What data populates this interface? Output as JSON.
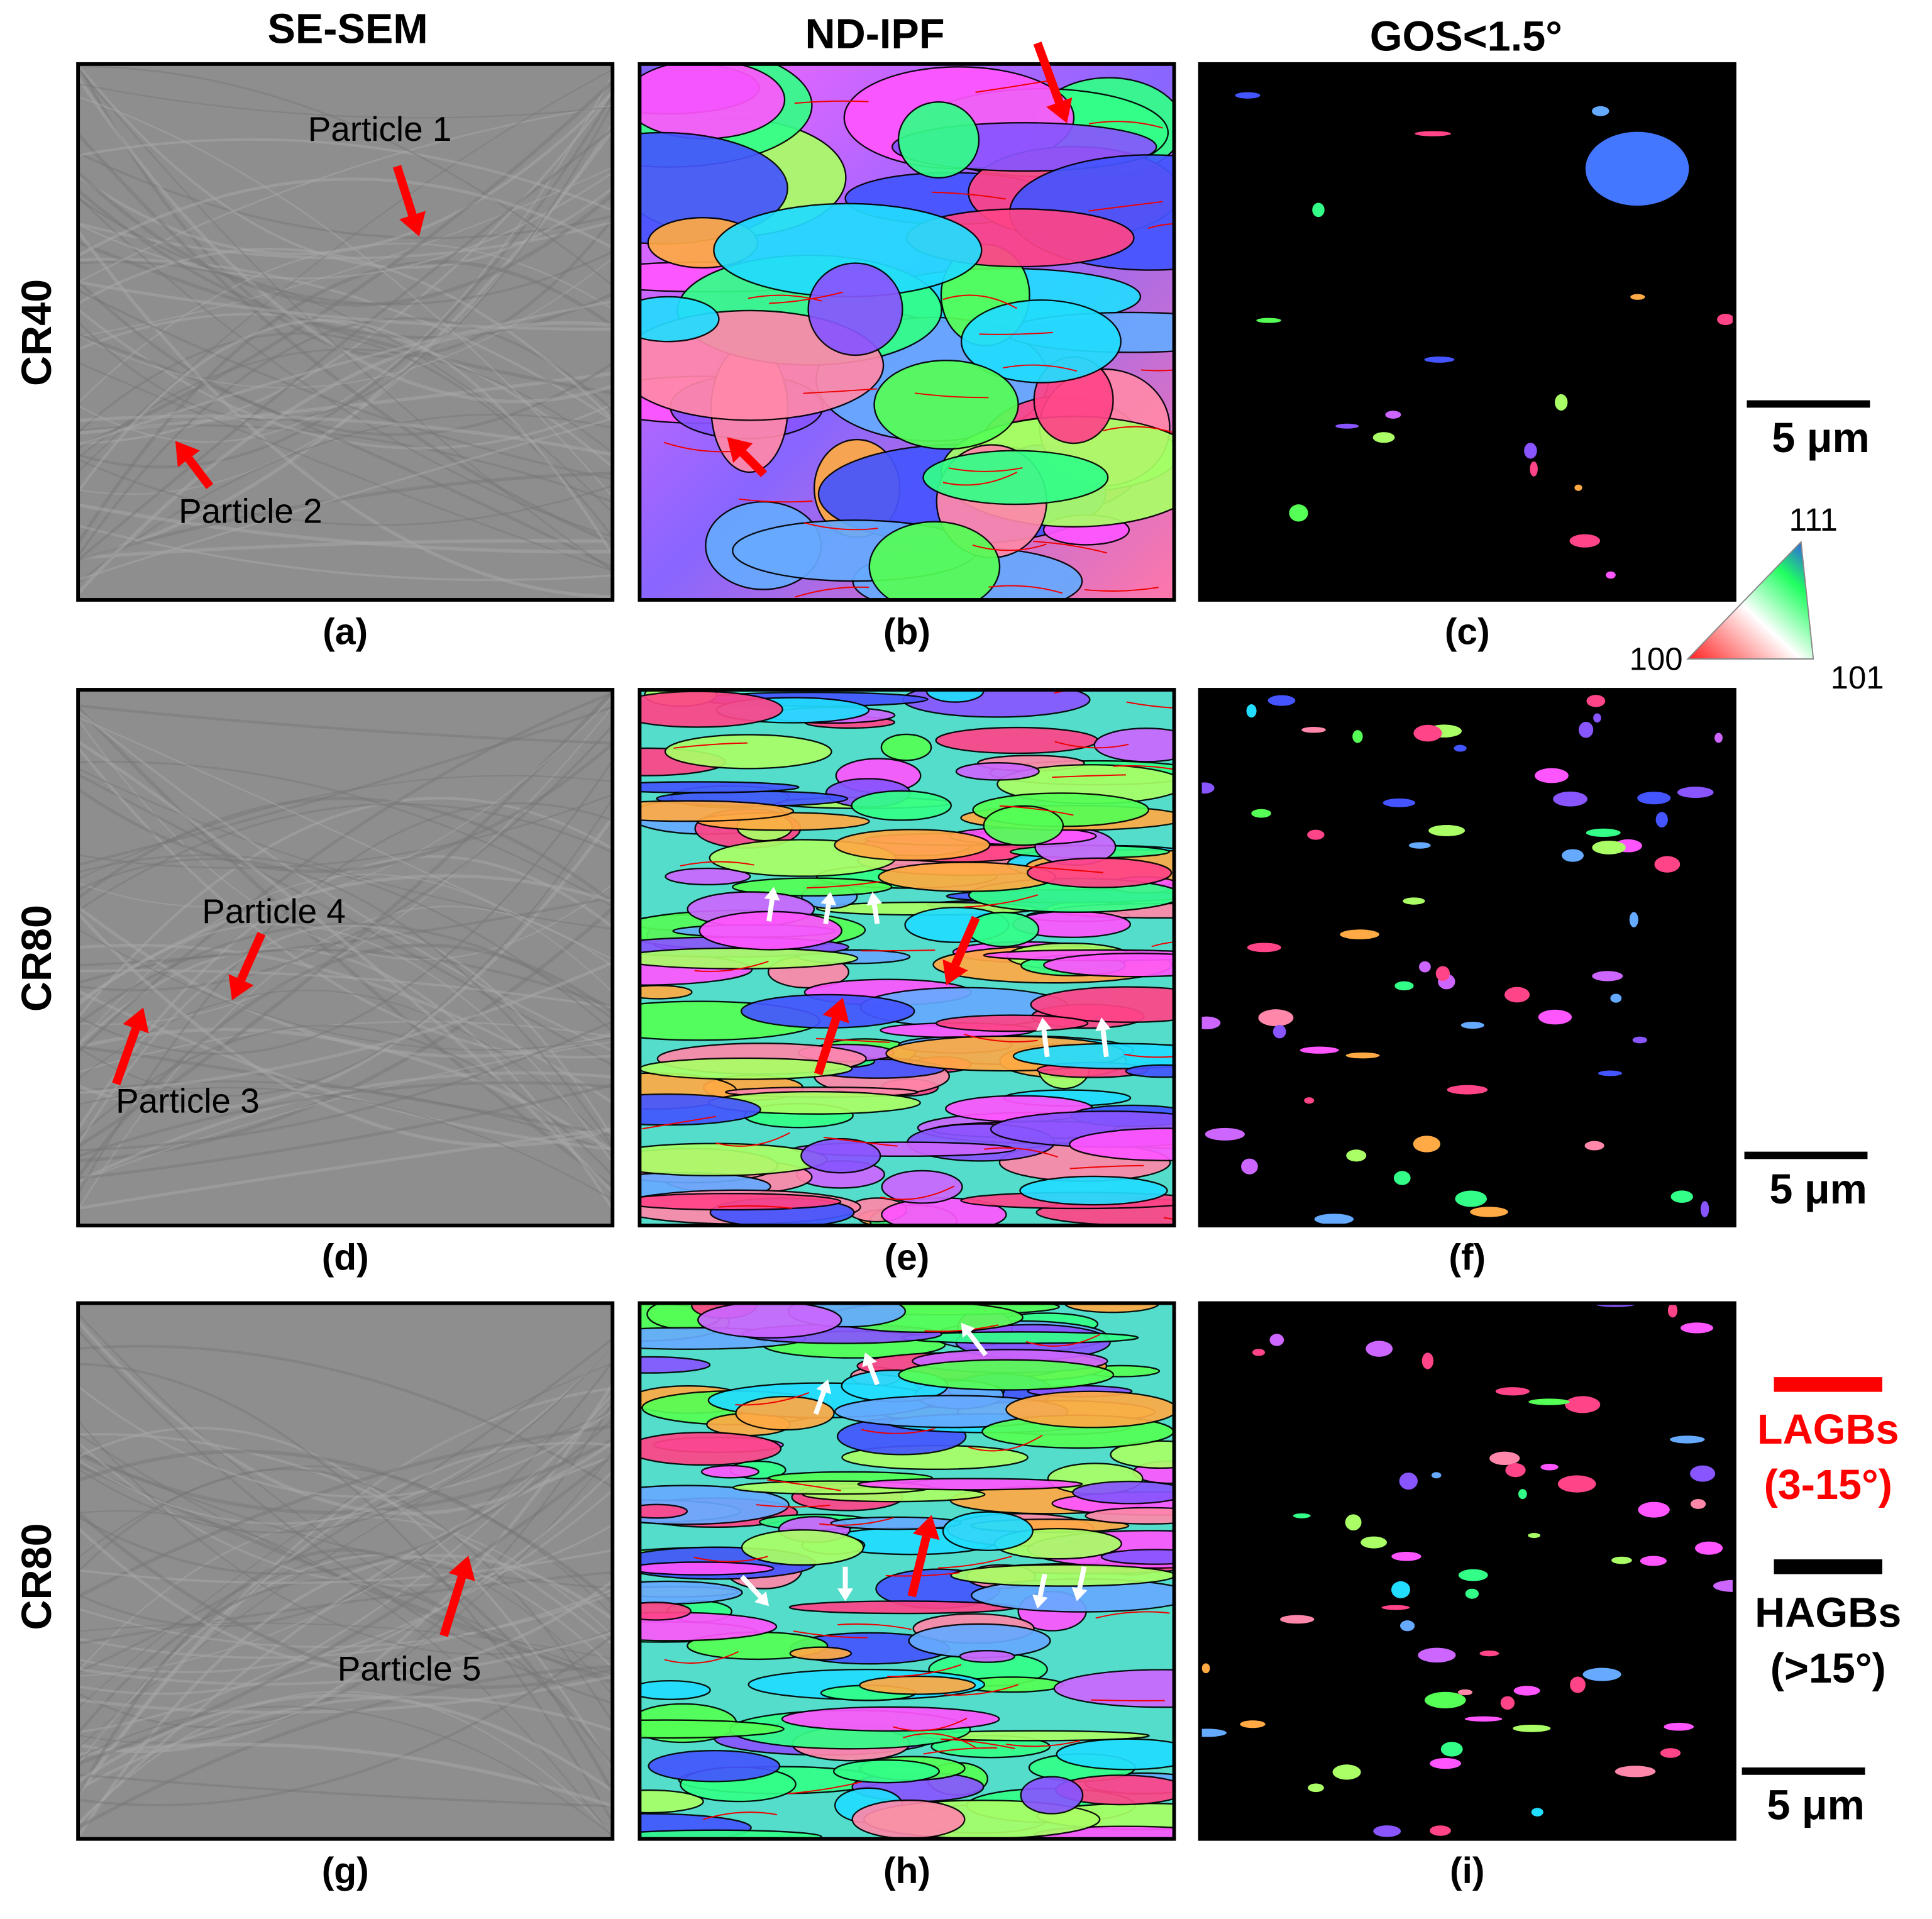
{
  "columns": [
    "SE-SEM",
    "ND-IPF",
    "GOS<1.5°"
  ],
  "rows": [
    "CR40",
    "CR80",
    "CR80"
  ],
  "panel_labels": [
    "(a)",
    "(b)",
    "(c)",
    "(d)",
    "(e)",
    "(f)",
    "(g)",
    "(h)",
    "(i)"
  ],
  "particles": [
    "Particle 1",
    "Particle 2",
    "Particle 3",
    "Particle 4",
    "Particle 5"
  ],
  "scale_bars": [
    "5 μm",
    "5 μm",
    "5 μm"
  ],
  "ipf_key": {
    "top": "111",
    "left": "100",
    "right": "101"
  },
  "legend": {
    "lagb": {
      "name": "LAGBs",
      "range": "(3-15°)"
    },
    "hagb": {
      "name": "HAGBs",
      "range": "(>15°)"
    }
  }
}
